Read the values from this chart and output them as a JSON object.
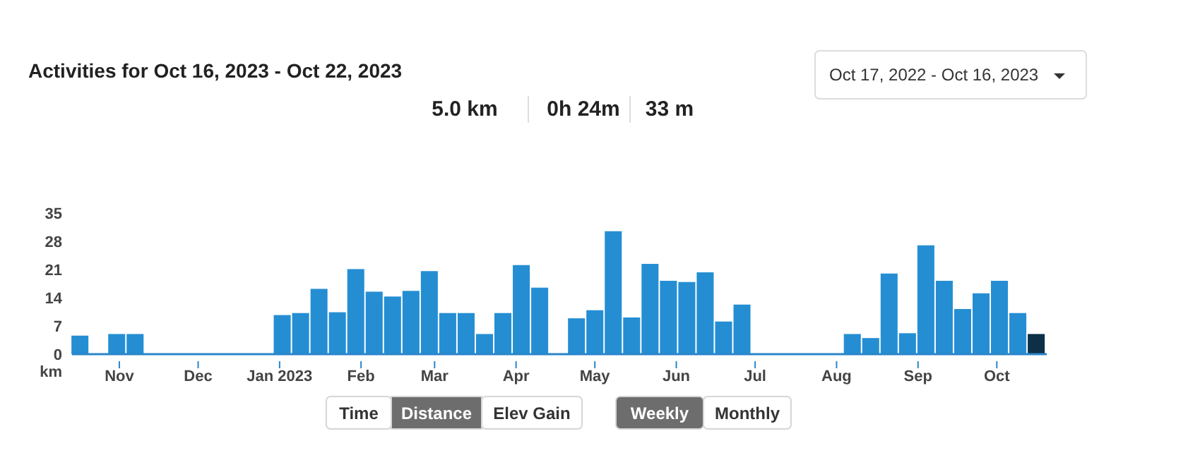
{
  "chart_data": {
    "type": "bar",
    "title": "Activities for Oct 16, 2023 - Oct 22, 2023",
    "ylabel": "km",
    "annotations": [
      "5.0 km",
      "0h 24m",
      "33 m",
      "Oct 17, 2022 - Oct 16, 2023",
      "Time",
      "Distance",
      "Elev Gain",
      "Weekly",
      "Monthly"
    ],
    "x": [
      "2022-10-17",
      "2022-10-24",
      "2022-10-31",
      "2022-11-07",
      "2022-11-14",
      "2022-11-21",
      "2022-11-28",
      "2022-12-05",
      "2022-12-12",
      "2022-12-19",
      "2022-12-26",
      "2023-01-02",
      "2023-01-09",
      "2023-01-16",
      "2023-01-23",
      "2023-01-30",
      "2023-02-06",
      "2023-02-13",
      "2023-02-20",
      "2023-02-27",
      "2023-03-06",
      "2023-03-13",
      "2023-03-20",
      "2023-03-27",
      "2023-04-03",
      "2023-04-10",
      "2023-04-17",
      "2023-04-24",
      "2023-05-01",
      "2023-05-08",
      "2023-05-15",
      "2023-05-22",
      "2023-05-29",
      "2023-06-05",
      "2023-06-12",
      "2023-06-19",
      "2023-06-26",
      "2023-07-03",
      "2023-07-10",
      "2023-07-17",
      "2023-07-24",
      "2023-07-31",
      "2023-08-07",
      "2023-08-14",
      "2023-08-21",
      "2023-08-28",
      "2023-09-04",
      "2023-09-11",
      "2023-09-18",
      "2023-09-25",
      "2023-10-02",
      "2023-10-09",
      "2023-10-16"
    ],
    "values": [
      4.6,
      0,
      5.0,
      5.0,
      0,
      0,
      0,
      0,
      0,
      0,
      0,
      9.7,
      10.2,
      16.2,
      10.4,
      21.1,
      15.5,
      14.3,
      15.7,
      20.6,
      10.2,
      10.2,
      5.0,
      10.2,
      22.1,
      16.5,
      0,
      8.9,
      10.9,
      30.5,
      9.1,
      22.4,
      18.2,
      17.9,
      20.3,
      8.1,
      12.3,
      0,
      0,
      0,
      0,
      0,
      5.0,
      4.0,
      20.0,
      5.2,
      27.0,
      18.2,
      11.2,
      15.1,
      18.2,
      10.2,
      5.0
    ],
    "colors": [
      "#258ed3",
      "#258ed3",
      "#258ed3",
      "#258ed3",
      "#258ed3",
      "#258ed3",
      "#258ed3",
      "#258ed3",
      "#258ed3",
      "#258ed3",
      "#258ed3",
      "#258ed3",
      "#258ed3",
      "#258ed3",
      "#258ed3",
      "#258ed3",
      "#258ed3",
      "#258ed3",
      "#258ed3",
      "#258ed3",
      "#258ed3",
      "#258ed3",
      "#258ed3",
      "#258ed3",
      "#258ed3",
      "#258ed3",
      "#258ed3",
      "#258ed3",
      "#258ed3",
      "#258ed3",
      "#258ed3",
      "#258ed3",
      "#258ed3",
      "#258ed3",
      "#258ed3",
      "#258ed3",
      "#258ed3",
      "#258ed3",
      "#258ed3",
      "#258ed3",
      "#258ed3",
      "#258ed3",
      "#258ed3",
      "#258ed3",
      "#258ed3",
      "#258ed3",
      "#258ed3",
      "#258ed3",
      "#258ed3",
      "#258ed3",
      "#258ed3",
      "#258ed3",
      "#0d2f48"
    ],
    "xlim": [
      "2022-10-14",
      "2023-10-20"
    ],
    "xticks": [
      {
        "value": "2022-11-01",
        "label": "Nov"
      },
      {
        "value": "2022-12-01",
        "label": "Dec"
      },
      {
        "value": "2023-01-01",
        "label": "Jan 2023"
      },
      {
        "value": "2023-02-01",
        "label": "Feb"
      },
      {
        "value": "2023-03-01",
        "label": "Mar"
      },
      {
        "value": "2023-04-01",
        "label": "Apr"
      },
      {
        "value": "2023-05-01",
        "label": "May"
      },
      {
        "value": "2023-06-01",
        "label": "Jun"
      },
      {
        "value": "2023-07-01",
        "label": "Jul"
      },
      {
        "value": "2023-08-01",
        "label": "Aug"
      },
      {
        "value": "2023-09-01",
        "label": "Sep"
      },
      {
        "value": "2023-10-01",
        "label": "Oct"
      }
    ],
    "ylim": [
      0,
      35
    ],
    "yticks": [
      0,
      7,
      14,
      21,
      28,
      35
    ]
  }
}
